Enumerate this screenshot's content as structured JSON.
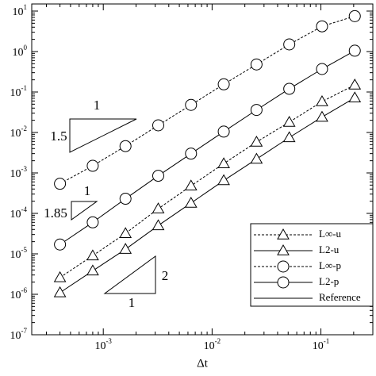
{
  "chart_data": {
    "type": "line",
    "x_label": "Δt",
    "x": [
      0.0004,
      0.0008,
      0.0016,
      0.0032,
      0.0064,
      0.0128,
      0.0256,
      0.0512,
      0.1024,
      0.2048
    ],
    "series": [
      {
        "name": "L∞-u",
        "color": "#000000",
        "dash": true,
        "marker": "triangle",
        "values": [
          2.6e-06,
          9e-06,
          3.2e-05,
          0.00013,
          0.00048,
          0.0017,
          0.0058,
          0.018,
          0.058,
          0.15
        ]
      },
      {
        "name": "L2-u",
        "color": "#000000",
        "dash": false,
        "marker": "triangle",
        "values": [
          1.1e-06,
          3.8e-06,
          1.3e-05,
          5e-05,
          0.00018,
          0.00065,
          0.0022,
          0.0075,
          0.024,
          0.072
        ]
      },
      {
        "name": "L∞-p",
        "color": "#000000",
        "dash": true,
        "marker": "circle",
        "values": [
          0.00054,
          0.0015,
          0.0046,
          0.015,
          0.048,
          0.155,
          0.48,
          1.5,
          4.2,
          7.5
        ]
      },
      {
        "name": "L2-p",
        "color": "#000000",
        "dash": false,
        "marker": "circle",
        "values": [
          1.7e-05,
          6e-05,
          0.00023,
          0.00085,
          0.003,
          0.0105,
          0.036,
          0.12,
          0.37,
          1.05
        ]
      }
    ],
    "reference": {
      "name": "Reference",
      "color": "#000000"
    },
    "annotations": [
      "1",
      "1.5",
      "1",
      "1.85",
      "2",
      "1"
    ],
    "xlog": true,
    "ylog": true,
    "xlim": [
      0.00022,
      0.3
    ],
    "ylim": [
      1e-07,
      15
    ],
    "xticks": [
      {
        "value": 0.001,
        "label": "10",
        "exponent": "-3"
      },
      {
        "value": 0.01,
        "label": "10",
        "exponent": "-2"
      },
      {
        "value": 0.1,
        "label": "10",
        "exponent": "-1"
      }
    ],
    "yticks": [
      {
        "value": 1e-07,
        "label": "10",
        "exponent": "-7"
      },
      {
        "value": 1e-06,
        "label": "10",
        "exponent": "-6"
      },
      {
        "value": 1e-05,
        "label": "10",
        "exponent": "-5"
      },
      {
        "value": 0.0001,
        "label": "10",
        "exponent": "-4"
      },
      {
        "value": 0.001,
        "label": "10",
        "exponent": "-3"
      },
      {
        "value": 0.01,
        "label": "10",
        "exponent": "-2"
      },
      {
        "value": 0.1,
        "label": "10",
        "exponent": "-1"
      },
      {
        "value": 1,
        "label": "10",
        "exponent": "0"
      },
      {
        "value": 10,
        "label": "10",
        "exponent": "1"
      }
    ],
    "legend": "lower right"
  }
}
